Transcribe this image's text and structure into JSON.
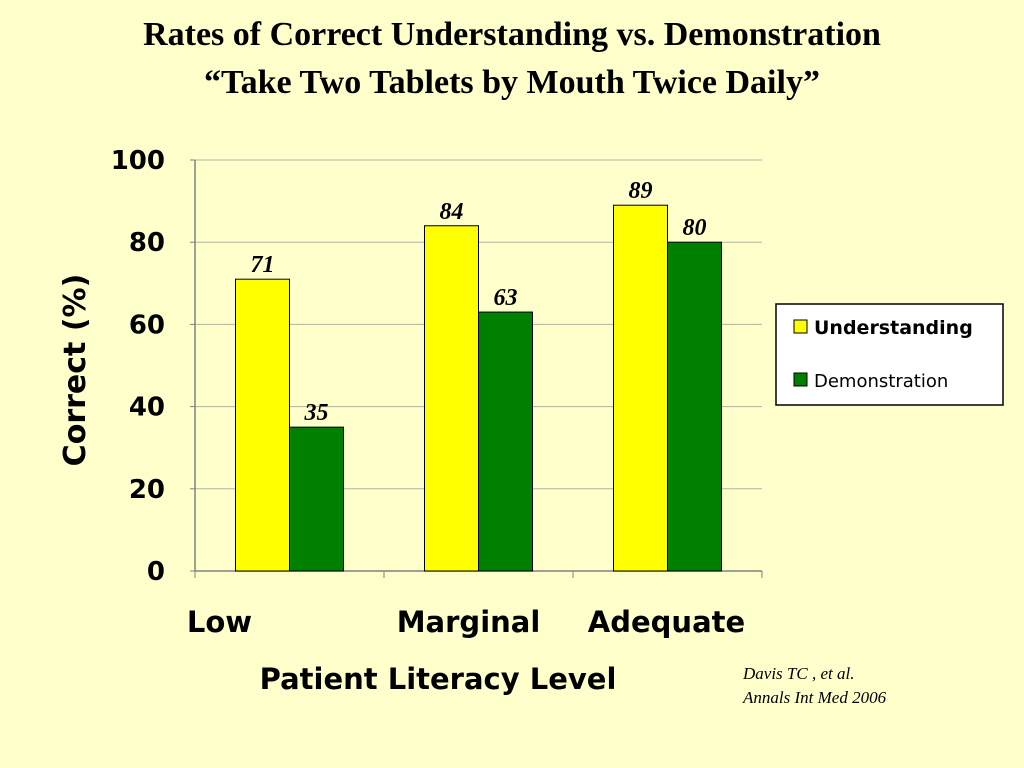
{
  "title_line1": "Rates of Correct Understanding vs. Demonstration",
  "title_line2": "“Take Two Tablets by Mouth Twice Daily”",
  "citation": {
    "line1": "Davis TC , et al.",
    "line2": "Annals Int Med 2006"
  },
  "chart_data": {
    "type": "bar",
    "title": "Rates of Correct Understanding vs. Demonstration “Take Two Tablets by Mouth Twice Daily”",
    "xlabel": "Patient Literacy Level",
    "ylabel": "Correct (%)",
    "categories": [
      "Low",
      "Marginal",
      "Adequate"
    ],
    "ylim": [
      0,
      100
    ],
    "yticks": [
      0,
      20,
      40,
      60,
      80,
      100
    ],
    "grid": true,
    "legend_position": "right",
    "series": [
      {
        "name": "Understanding",
        "values": [
          71,
          84,
          89
        ],
        "color": "#FFFF00"
      },
      {
        "name": "Demonstration",
        "values": [
          35,
          63,
          80
        ],
        "color": "#008000"
      }
    ]
  }
}
